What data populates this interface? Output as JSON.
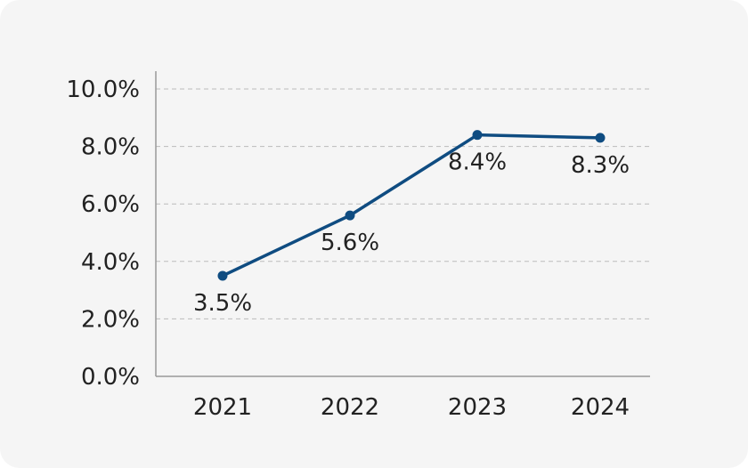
{
  "chart_data": {
    "type": "line",
    "title": "",
    "xlabel": "",
    "ylabel": "",
    "categories": [
      "2021",
      "2022",
      "2023",
      "2024"
    ],
    "series": [
      {
        "values": [
          3.5,
          5.6,
          8.4,
          8.3
        ],
        "data_labels": [
          "3.5%",
          "5.6%",
          "8.4%",
          "8.3%"
        ],
        "color": "#0f4c81"
      }
    ],
    "ylim": [
      0,
      10
    ],
    "yticks": [
      0,
      2,
      4,
      6,
      8,
      10
    ],
    "ytick_labels": [
      "0.0%",
      "2.0%",
      "4.0%",
      "6.0%",
      "8.0%",
      "10.0%"
    ],
    "grid": "horizontal dashed",
    "legend": "none"
  },
  "colors": {
    "background": "#f5f5f5",
    "line": "#0f4c81",
    "grid": "#bbbbbb",
    "axis": "#999999",
    "text": "#222222"
  }
}
